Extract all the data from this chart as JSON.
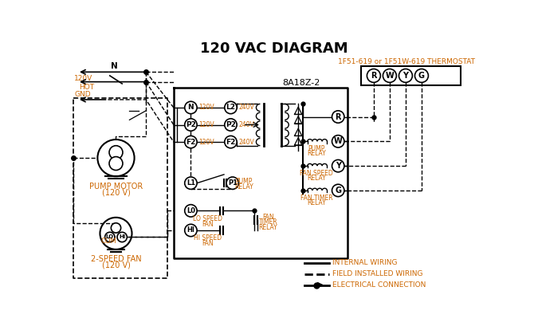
{
  "title": "120 VAC DIAGRAM",
  "bg_color": "#ffffff",
  "text_color": "#000000",
  "orange_color": "#cc6600",
  "thermostat_label": "1F51-619 or 1F51W-619 THERMOSTAT",
  "board_label": "8A18Z-2"
}
